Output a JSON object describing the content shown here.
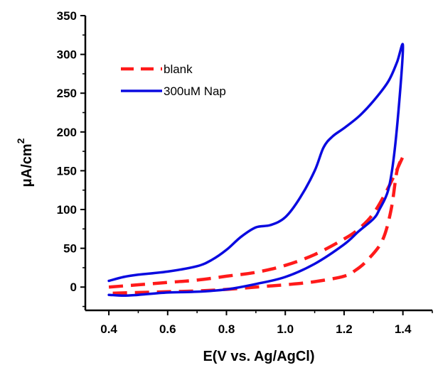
{
  "chart_data": {
    "type": "line",
    "xlabel": "E(V vs. Ag/AgCl)",
    "ylabel": "μA/cm",
    "ylabel_superscript": "2",
    "xlim": [
      0.32,
      1.5
    ],
    "ylim": [
      -30,
      350
    ],
    "xticks": [
      0.4,
      0.6,
      0.8,
      1.0,
      1.2,
      1.4
    ],
    "xtick_labels": [
      "0.4",
      "0.6",
      "0.8",
      "1.0",
      "1.2",
      "1.4"
    ],
    "yticks": [
      0,
      50,
      100,
      150,
      200,
      250,
      300,
      350
    ],
    "ytick_labels": [
      "0",
      "50",
      "100",
      "150",
      "200",
      "250",
      "300",
      "350"
    ],
    "legend_position": "top-left",
    "series": [
      {
        "name": "blank",
        "color": "#ff1a1a",
        "dash": "dashed",
        "points": [
          [
            0.4,
            0
          ],
          [
            0.5,
            3
          ],
          [
            0.6,
            6
          ],
          [
            0.7,
            9
          ],
          [
            0.8,
            14
          ],
          [
            0.9,
            19
          ],
          [
            1.0,
            28
          ],
          [
            1.1,
            42
          ],
          [
            1.2,
            62
          ],
          [
            1.25,
            75
          ],
          [
            1.3,
            95
          ],
          [
            1.35,
            128
          ],
          [
            1.4,
            168
          ],
          [
            1.38,
            150
          ],
          [
            1.36,
            100
          ],
          [
            1.33,
            60
          ],
          [
            1.28,
            35
          ],
          [
            1.24,
            22
          ],
          [
            1.2,
            14
          ],
          [
            1.1,
            7
          ],
          [
            1.0,
            3
          ],
          [
            0.9,
            0
          ],
          [
            0.8,
            -3
          ],
          [
            0.7,
            -5
          ],
          [
            0.6,
            -6
          ],
          [
            0.5,
            -7
          ],
          [
            0.4,
            -8
          ]
        ]
      },
      {
        "name": "300uM Nap",
        "color": "#0a0ae0",
        "dash": "solid",
        "points": [
          [
            0.4,
            8
          ],
          [
            0.45,
            13
          ],
          [
            0.5,
            16
          ],
          [
            0.6,
            20
          ],
          [
            0.7,
            27
          ],
          [
            0.75,
            35
          ],
          [
            0.8,
            48
          ],
          [
            0.85,
            65
          ],
          [
            0.9,
            77
          ],
          [
            0.95,
            80
          ],
          [
            1.0,
            90
          ],
          [
            1.05,
            115
          ],
          [
            1.1,
            150
          ],
          [
            1.13,
            180
          ],
          [
            1.16,
            194
          ],
          [
            1.2,
            205
          ],
          [
            1.25,
            220
          ],
          [
            1.3,
            240
          ],
          [
            1.35,
            265
          ],
          [
            1.38,
            290
          ],
          [
            1.4,
            312
          ],
          [
            1.39,
            250
          ],
          [
            1.37,
            170
          ],
          [
            1.35,
            125
          ],
          [
            1.32,
            100
          ],
          [
            1.3,
            88
          ],
          [
            1.25,
            72
          ],
          [
            1.2,
            55
          ],
          [
            1.1,
            30
          ],
          [
            1.0,
            13
          ],
          [
            0.9,
            4
          ],
          [
            0.8,
            -3
          ],
          [
            0.7,
            -6
          ],
          [
            0.6,
            -7
          ],
          [
            0.5,
            -10
          ],
          [
            0.45,
            -11
          ],
          [
            0.4,
            -10
          ]
        ]
      }
    ]
  }
}
